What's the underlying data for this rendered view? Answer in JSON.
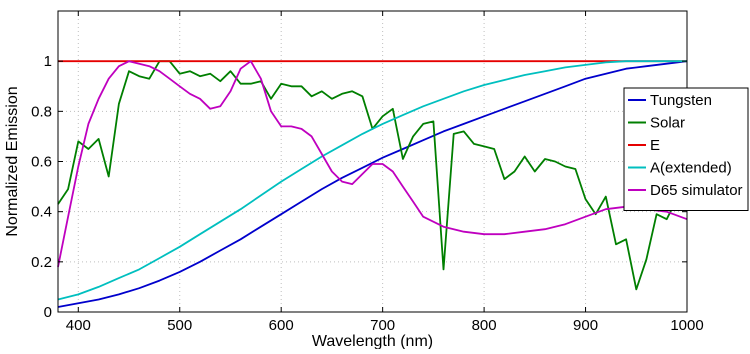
{
  "chart_data": {
    "type": "line",
    "title": "",
    "xlabel": "Wavelength (nm)",
    "ylabel": "Normalized Emission",
    "xlim": [
      380,
      1000
    ],
    "ylim": [
      0,
      1.2
    ],
    "xticks": [
      400,
      500,
      600,
      700,
      800,
      900,
      1000
    ],
    "yticks": [
      0,
      0.2,
      0.4,
      0.6,
      0.8,
      1
    ],
    "grid": true,
    "legend_position": "right",
    "series": [
      {
        "name": "Tungsten",
        "color": "#0000cc",
        "x": [
          380,
          400,
          420,
          440,
          460,
          480,
          500,
          520,
          540,
          560,
          580,
          600,
          620,
          640,
          660,
          680,
          700,
          720,
          740,
          760,
          780,
          800,
          820,
          840,
          860,
          880,
          900,
          920,
          940,
          960,
          980,
          1000
        ],
        "y": [
          0.02,
          0.035,
          0.05,
          0.07,
          0.095,
          0.125,
          0.16,
          0.2,
          0.245,
          0.29,
          0.34,
          0.39,
          0.44,
          0.49,
          0.535,
          0.575,
          0.615,
          0.65,
          0.685,
          0.72,
          0.75,
          0.78,
          0.81,
          0.84,
          0.87,
          0.9,
          0.93,
          0.95,
          0.97,
          0.98,
          0.99,
          1.0
        ]
      },
      {
        "name": "Solar",
        "color": "#007f00",
        "x": [
          380,
          390,
          400,
          410,
          420,
          430,
          440,
          450,
          460,
          470,
          480,
          490,
          500,
          510,
          520,
          530,
          540,
          550,
          560,
          570,
          580,
          590,
          600,
          610,
          620,
          630,
          640,
          650,
          660,
          670,
          680,
          690,
          700,
          710,
          720,
          730,
          740,
          750,
          760,
          770,
          780,
          790,
          800,
          810,
          820,
          830,
          840,
          850,
          860,
          870,
          880,
          890,
          900,
          910,
          920,
          930,
          940,
          950,
          960,
          970,
          980,
          990,
          1000
        ],
        "y": [
          0.43,
          0.49,
          0.68,
          0.65,
          0.69,
          0.54,
          0.83,
          0.96,
          0.94,
          0.93,
          1.0,
          1.0,
          0.95,
          0.96,
          0.94,
          0.95,
          0.92,
          0.96,
          0.91,
          0.91,
          0.92,
          0.85,
          0.91,
          0.9,
          0.9,
          0.86,
          0.88,
          0.85,
          0.87,
          0.88,
          0.86,
          0.73,
          0.78,
          0.81,
          0.61,
          0.7,
          0.75,
          0.76,
          0.17,
          0.71,
          0.72,
          0.67,
          0.66,
          0.65,
          0.53,
          0.56,
          0.62,
          0.56,
          0.61,
          0.6,
          0.58,
          0.57,
          0.45,
          0.39,
          0.46,
          0.27,
          0.29,
          0.09,
          0.21,
          0.39,
          0.37,
          0.45,
          0.45
        ]
      },
      {
        "name": "E",
        "color": "#e50000",
        "x": [
          380,
          1000
        ],
        "y": [
          1.0,
          1.0
        ]
      },
      {
        "name": "A(extended)",
        "color": "#00bfbf",
        "x": [
          380,
          400,
          420,
          440,
          460,
          480,
          500,
          520,
          540,
          560,
          580,
          600,
          620,
          640,
          660,
          680,
          700,
          720,
          740,
          760,
          780,
          800,
          820,
          840,
          860,
          880,
          900,
          920,
          940,
          960,
          980,
          1000
        ],
        "y": [
          0.05,
          0.07,
          0.1,
          0.135,
          0.17,
          0.215,
          0.26,
          0.31,
          0.36,
          0.41,
          0.465,
          0.52,
          0.57,
          0.62,
          0.665,
          0.71,
          0.75,
          0.785,
          0.82,
          0.85,
          0.88,
          0.905,
          0.925,
          0.945,
          0.96,
          0.975,
          0.985,
          0.995,
          1.0,
          1.0,
          1.0,
          1.0
        ]
      },
      {
        "name": "D65 simulator",
        "color": "#bf00bf",
        "x": [
          380,
          390,
          400,
          410,
          420,
          430,
          440,
          450,
          460,
          470,
          480,
          490,
          500,
          510,
          520,
          530,
          540,
          550,
          560,
          570,
          580,
          590,
          600,
          610,
          620,
          630,
          640,
          650,
          660,
          670,
          680,
          690,
          700,
          710,
          720,
          730,
          740,
          760,
          780,
          800,
          820,
          840,
          860,
          880,
          900,
          920,
          940,
          960,
          980,
          1000
        ],
        "y": [
          0.18,
          0.38,
          0.58,
          0.75,
          0.85,
          0.93,
          0.98,
          1.0,
          0.99,
          0.98,
          0.96,
          0.93,
          0.9,
          0.87,
          0.85,
          0.81,
          0.82,
          0.88,
          0.97,
          1.0,
          0.93,
          0.8,
          0.74,
          0.74,
          0.73,
          0.7,
          0.63,
          0.56,
          0.52,
          0.51,
          0.55,
          0.59,
          0.59,
          0.56,
          0.5,
          0.44,
          0.38,
          0.34,
          0.32,
          0.31,
          0.31,
          0.32,
          0.33,
          0.35,
          0.38,
          0.41,
          0.42,
          0.41,
          0.4,
          0.37
        ]
      }
    ]
  }
}
